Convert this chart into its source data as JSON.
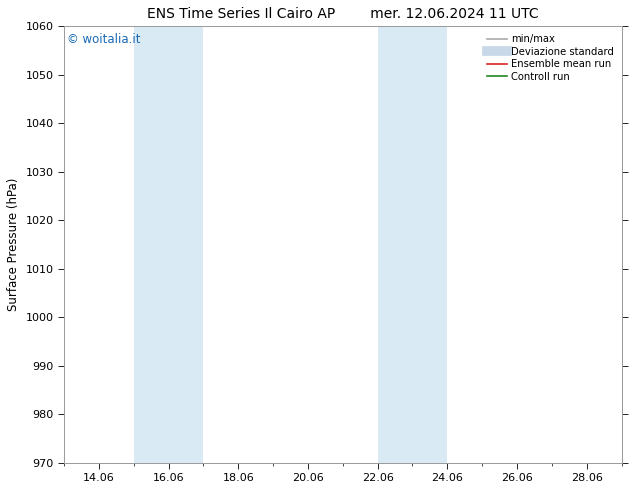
{
  "title_left": "ENS Time Series Il Cairo AP",
  "title_right": "mer. 12.06.2024 11 UTC",
  "ylabel": "Surface Pressure (hPa)",
  "ylim": [
    970,
    1060
  ],
  "yticks": [
    970,
    980,
    990,
    1000,
    1010,
    1020,
    1030,
    1040,
    1050,
    1060
  ],
  "xlim": [
    13.0,
    29.0
  ],
  "xtick_positions": [
    14,
    16,
    18,
    20,
    22,
    24,
    26,
    28
  ],
  "xtick_labels": [
    "14.06",
    "16.06",
    "18.06",
    "20.06",
    "22.06",
    "24.06",
    "26.06",
    "28.06"
  ],
  "shaded_bands": [
    {
      "x_start": 15.0,
      "x_end": 16.0,
      "color": "#daeaf5"
    },
    {
      "x_start": 16.0,
      "x_end": 17.0,
      "color": "#daeaf5"
    },
    {
      "x_start": 22.0,
      "x_end": 23.0,
      "color": "#daeaf5"
    },
    {
      "x_start": 23.0,
      "x_end": 24.0,
      "color": "#daeaf5"
    }
  ],
  "watermark_text": "© woitalia.it",
  "watermark_color": "#1a6ab5",
  "legend_entries": [
    {
      "label": "min/max",
      "color": "#aaaaaa",
      "lw": 1.2,
      "style": "line"
    },
    {
      "label": "Deviazione standard",
      "color": "#c8d8e8",
      "lw": 7,
      "style": "line"
    },
    {
      "label": "Ensemble mean run",
      "color": "#dd2222",
      "lw": 1.2,
      "style": "line"
    },
    {
      "label": "Controll run",
      "color": "#228822",
      "lw": 1.2,
      "style": "line"
    }
  ],
  "background_color": "#ffffff",
  "spine_color": "#999999",
  "title_fontsize": 10,
  "axis_fontsize": 8.5,
  "tick_fontsize": 8
}
